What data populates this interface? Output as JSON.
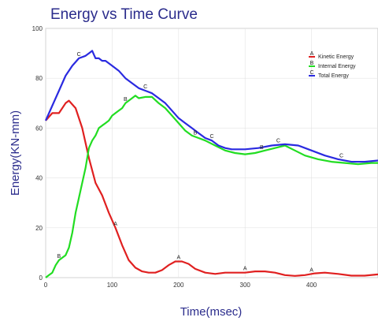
{
  "chart_data": {
    "type": "line",
    "title": "Energy vs Time Curve",
    "xlabel": "Time(msec)",
    "ylabel": "Energy(KN-mm)",
    "xlim": [
      0,
      500
    ],
    "ylim": [
      0,
      100
    ],
    "x_ticks": [
      "0",
      "100",
      "200",
      "300",
      "400"
    ],
    "y_ticks": [
      "0",
      "20",
      "40",
      "60",
      "80",
      "100"
    ],
    "grid": true,
    "legend_position": "top-right",
    "series": [
      {
        "name": "Kinetic Energy",
        "marker": "A",
        "color": "#e02020",
        "x": [
          0,
          10,
          20,
          30,
          35,
          45,
          55,
          65,
          75,
          85,
          95,
          105,
          115,
          125,
          135,
          145,
          155,
          165,
          175,
          185,
          195,
          205,
          215,
          225,
          240,
          255,
          270,
          285,
          300,
          315,
          330,
          345,
          360,
          375,
          390,
          405,
          420,
          440,
          460,
          480,
          500
        ],
        "y": [
          63,
          66,
          66,
          70,
          71,
          68,
          60,
          48,
          38,
          33,
          26,
          20,
          13,
          7,
          4,
          2.5,
          2,
          2,
          3,
          5,
          6.5,
          6.5,
          5.5,
          3.5,
          2,
          1.5,
          2,
          2,
          2,
          2.5,
          2.5,
          2,
          1,
          0.7,
          1,
          1.7,
          2,
          1.5,
          0.8,
          0.8,
          1.3
        ],
        "markers_x": [
          105,
          200,
          300,
          400
        ]
      },
      {
        "name": "Internal Energy",
        "marker": "B",
        "color": "#22dd22",
        "x": [
          0,
          5,
          10,
          15,
          20,
          25,
          30,
          35,
          40,
          45,
          50,
          55,
          60,
          65,
          70,
          75,
          80,
          85,
          90,
          95,
          100,
          105,
          110,
          115,
          120,
          125,
          130,
          135,
          140,
          150,
          160,
          170,
          180,
          190,
          200,
          210,
          220,
          230,
          240,
          255,
          270,
          285,
          300,
          315,
          330,
          345,
          360,
          375,
          390,
          410,
          430,
          450,
          470,
          490,
          500
        ],
        "y": [
          0,
          1,
          2,
          5,
          7,
          8,
          9,
          12,
          18,
          26,
          32,
          38,
          44,
          52,
          55,
          57,
          60,
          61,
          62,
          63,
          65,
          66,
          67,
          68,
          70,
          71,
          72,
          73,
          72,
          72.5,
          72.5,
          70,
          68,
          65,
          62,
          59,
          57,
          56,
          55,
          53,
          51,
          50,
          49.5,
          50,
          51,
          52,
          53,
          51,
          49,
          47.5,
          46.5,
          46,
          45.5,
          46,
          46
        ],
        "markers_x": [
          20,
          120,
          225,
          325
        ]
      },
      {
        "name": "Total Energy",
        "marker": "C",
        "color": "#2a2ae0",
        "x": [
          0,
          10,
          20,
          30,
          40,
          50,
          60,
          65,
          70,
          75,
          80,
          85,
          90,
          100,
          110,
          120,
          130,
          140,
          150,
          160,
          170,
          180,
          190,
          200,
          210,
          220,
          230,
          240,
          250,
          260,
          270,
          280,
          300,
          320,
          340,
          360,
          380,
          400,
          420,
          440,
          460,
          480,
          500
        ],
        "y": [
          63,
          69,
          75,
          81,
          85,
          88,
          89,
          90,
          91,
          88,
          88,
          87,
          87,
          85,
          83,
          80,
          78,
          76,
          75,
          74,
          72,
          70,
          67,
          64,
          62,
          60,
          58,
          56,
          55,
          53,
          52,
          51.5,
          51.5,
          52,
          53,
          53.5,
          53,
          51,
          49,
          47.5,
          46.5,
          46.5,
          47
        ],
        "markers_x": [
          50,
          150,
          250,
          350,
          445
        ]
      }
    ]
  }
}
